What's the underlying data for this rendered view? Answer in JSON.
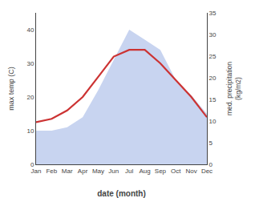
{
  "chart_data": {
    "type": "line",
    "categories": [
      "Jan",
      "Feb",
      "Mar",
      "Apr",
      "May",
      "Jun",
      "Jul",
      "Aug",
      "Sep",
      "Oct",
      "Nov",
      "Dec"
    ],
    "series": [
      {
        "type": "area",
        "color": "#c8d4f0",
        "values": [
          10.0,
          10.0,
          11.0,
          14.0,
          22.0,
          31.0,
          40.0,
          37.0,
          34.0,
          25.0,
          20.5,
          15.0
        ]
      },
      {
        "type": "line",
        "color": "#cc3333",
        "values": [
          12.5,
          13.5,
          16.0,
          20.0,
          26.0,
          32.0,
          34.0,
          34.0,
          30.0,
          25.0,
          20.0,
          14.0
        ]
      }
    ],
    "xlabel": "date (month)",
    "ylabel": "max temp (C)",
    "y2label": "med. precipitation\n(kg/m2)",
    "ylim": [
      0,
      45
    ],
    "yticks": [
      0,
      10,
      20,
      30,
      40
    ],
    "y2lim": [
      0,
      35
    ],
    "y2ticks": [
      0,
      5,
      10,
      15,
      20,
      25,
      30,
      35
    ],
    "grid": false
  }
}
